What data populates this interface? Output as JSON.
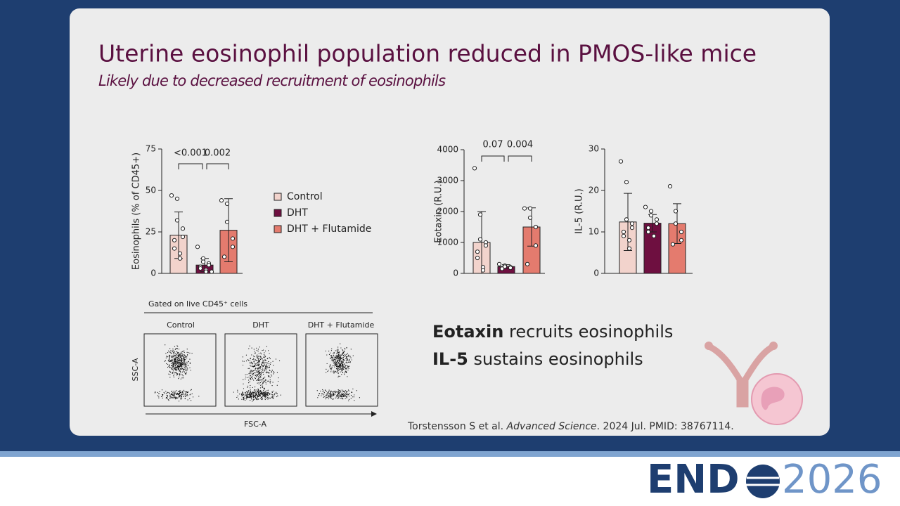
{
  "slide": {
    "title": "Uterine eosinophil population reduced in PMOS-like mice",
    "subtitle": "Likely due to decreased recruitment of eosinophils",
    "callouts": [
      {
        "bold": "Eotaxin",
        "text": "recruits eosinophils"
      },
      {
        "bold": "IL-5",
        "text": "sustains eosinophils"
      }
    ],
    "citation": [
      "Torstensson S et al.",
      "Advanced Science",
      ". 2024 Jul. PMID: 38767114."
    ],
    "flow": {
      "gate": "Gated on live CD45⁺ cells",
      "panels": [
        "Control",
        "DHT",
        "DHT + Flutamide"
      ],
      "y_label": "SSC-A",
      "x_label": "FSC-A"
    },
    "logo": {
      "brand": "END",
      "year": "2026"
    }
  },
  "chart_data": [
    {
      "type": "bar",
      "ylabel": "Eosinophils (% of CD45+)",
      "categories": [
        "Control",
        "DHT",
        "DHT + Flutamide"
      ],
      "colors": [
        "#f2d3cc",
        "#6e0f40",
        "#e47b6e"
      ],
      "values": [
        23,
        5,
        26
      ],
      "errors": [
        14,
        4,
        19
      ],
      "points": [
        [
          47,
          45,
          32,
          27,
          22,
          20,
          15,
          12,
          9
        ],
        [
          16,
          9,
          7,
          6,
          5,
          4,
          3,
          2,
          1,
          1
        ],
        [
          44,
          42,
          31,
          21,
          16,
          10
        ]
      ],
      "annotations": [
        "<0.001",
        "0.002"
      ],
      "ylim": [
        0,
        75
      ],
      "yticks": [
        0,
        25,
        50,
        75
      ]
    },
    {
      "type": "bar",
      "ylabel": "Eotaxin (R.U.)",
      "colors": [
        "#f2d3cc",
        "#6e0f40",
        "#e47b6e"
      ],
      "values": [
        1000,
        220,
        1500
      ],
      "errors": [
        1000,
        60,
        620
      ],
      "points": [
        [
          3400,
          1900,
          1100,
          1000,
          900,
          700,
          500,
          200,
          100
        ],
        [
          300,
          250,
          220,
          200,
          180,
          150
        ],
        [
          2100,
          2100,
          1800,
          1500,
          900,
          300
        ]
      ],
      "annotations": [
        "0.07",
        "0.004"
      ],
      "ylim": [
        0,
        4000
      ],
      "yticks": [
        0,
        1000,
        2000,
        3000,
        4000
      ]
    },
    {
      "type": "bar",
      "ylabel": "IL-5 (R.U.)",
      "colors": [
        "#f2d3cc",
        "#6e0f40",
        "#e47b6e"
      ],
      "values": [
        12.4,
        12.1,
        12.0
      ],
      "errors": [
        6.9,
        2.1,
        4.8
      ],
      "points": [
        [
          27,
          22,
          13,
          12,
          11,
          10,
          9,
          8,
          6
        ],
        [
          16,
          15,
          14,
          13,
          12,
          11,
          10,
          9
        ],
        [
          21,
          15,
          12,
          10,
          8,
          7
        ]
      ],
      "ylim": [
        0,
        30
      ],
      "yticks": [
        0,
        10,
        20,
        30
      ]
    }
  ]
}
